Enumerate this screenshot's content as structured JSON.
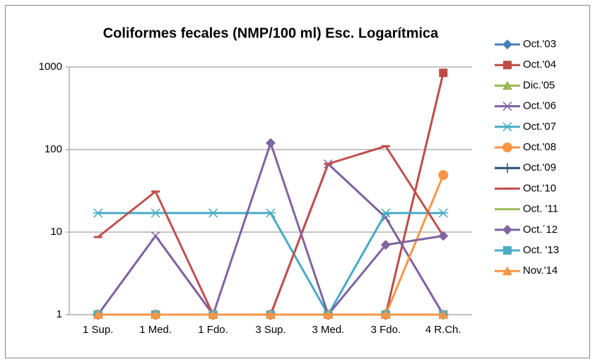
{
  "chart_data": {
    "type": "line",
    "title": "Coliformes fecales (NMP/100 ml) Esc. Logarítmica",
    "categories": [
      "1 Sup.",
      "1 Med.",
      "1 Fdo.",
      "3 Sup.",
      "3 Med.",
      "3 Fdo.",
      "4 R.Ch."
    ],
    "ylim": [
      1,
      1000
    ],
    "yticks": [
      1,
      10,
      100,
      1000
    ],
    "log": true,
    "grid": true,
    "legend": "right",
    "series": [
      {
        "name": "Oct.'03",
        "color": "#4a7ebb",
        "marker": "diamond",
        "values": [
          1,
          1,
          1,
          1,
          1,
          1,
          1
        ]
      },
      {
        "name": "Oct.'04",
        "color": "#be4b48",
        "marker": "square",
        "values": [
          1,
          1,
          1,
          1,
          1,
          1,
          850
        ]
      },
      {
        "name": "Dic.'05",
        "color": "#98b954",
        "marker": "triangle",
        "values": [
          1,
          1,
          1,
          1,
          1,
          1,
          1
        ]
      },
      {
        "name": "Oct.'06",
        "color": "#7d60a0",
        "marker": "x",
        "values": [
          1,
          9,
          1,
          1,
          67,
          15,
          1
        ]
      },
      {
        "name": "Oct.'07",
        "color": "#46aac5",
        "marker": "asterisk",
        "values": [
          17,
          17,
          17,
          17,
          1,
          17,
          17
        ]
      },
      {
        "name": "Oct.'08",
        "color": "#f79646",
        "marker": "circle",
        "values": [
          1,
          1,
          1,
          1,
          1,
          1,
          49
        ]
      },
      {
        "name": "Oct.'09",
        "color": "#2c4d75",
        "marker": "plus",
        "values": [
          1,
          1,
          1,
          1,
          1,
          1,
          1
        ]
      },
      {
        "name": "Oct.'10",
        "color": "#c0504d",
        "marker": "dash",
        "values": [
          8.7,
          31,
          1,
          1,
          67,
          110,
          9
        ]
      },
      {
        "name": "Oct. '11",
        "color": "#9bbb59",
        "marker": "none",
        "values": [
          1,
          1,
          1,
          1,
          1,
          1,
          1
        ]
      },
      {
        "name": "Oct.´12",
        "color": "#8064a2",
        "marker": "diamond",
        "values": [
          1,
          1,
          1,
          120,
          1,
          7,
          9
        ]
      },
      {
        "name": "Oct. '13",
        "color": "#4bacc6",
        "marker": "square",
        "values": [
          1,
          1,
          1,
          1,
          1,
          1,
          1
        ]
      },
      {
        "name": "Nov.'14",
        "color": "#f79646",
        "marker": "triangle",
        "values": [
          1,
          1,
          1,
          1,
          1,
          1,
          1
        ]
      }
    ]
  }
}
